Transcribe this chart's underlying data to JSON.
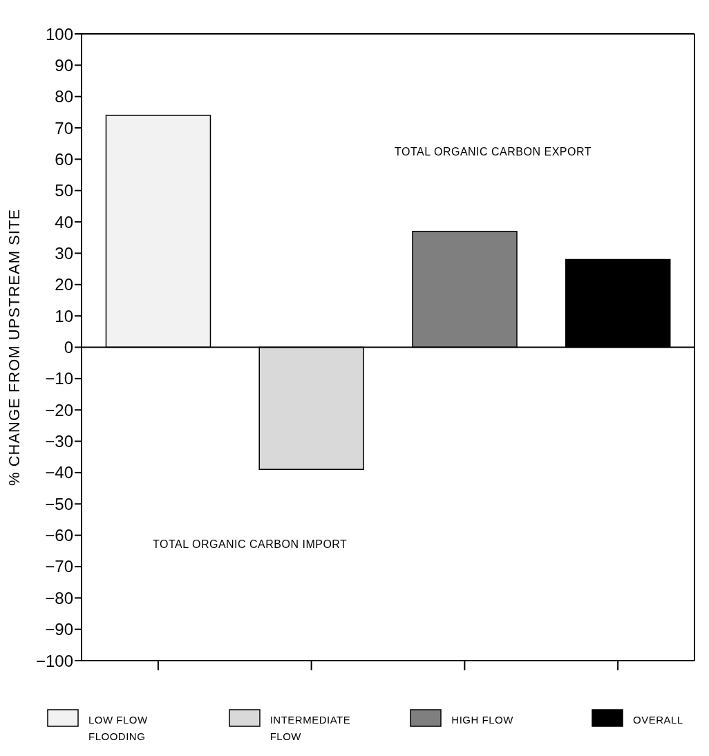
{
  "chart_data": {
    "type": "bar",
    "ylabel": "% CHANGE FROM UPSTREAM SITE",
    "categories": [
      null,
      null,
      null,
      null
    ],
    "series": [
      {
        "name": "LOW FLOW FLOODING",
        "color": "#f2f2f2",
        "values": [
          74,
          null,
          null,
          null
        ]
      },
      {
        "name": "INTERMEDIATE FLOW",
        "color": "#d9d9d9",
        "values": [
          null,
          -39,
          null,
          null
        ]
      },
      {
        "name": "HIGH FLOW",
        "color": "#7f7f7f",
        "values": [
          null,
          null,
          37,
          null
        ]
      },
      {
        "name": "OVERALL",
        "color": "#000000",
        "values": [
          null,
          null,
          null,
          28
        ]
      }
    ],
    "ylim": [
      -100,
      100
    ],
    "yticks": [
      -100,
      -90,
      -80,
      -70,
      -60,
      -50,
      -40,
      -30,
      -20,
      -10,
      0,
      10,
      20,
      30,
      40,
      50,
      60,
      70,
      80,
      90,
      100
    ],
    "tick_labels": "y",
    "legend": "bottom",
    "annotations": [
      "TOTAL ORGANIC CARBON EXPORT",
      "TOTAL ORGANIC CARBON IMPORT"
    ]
  }
}
